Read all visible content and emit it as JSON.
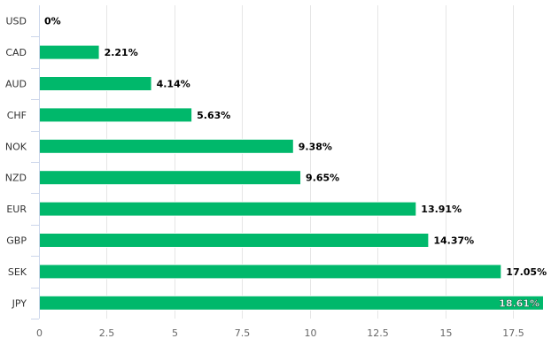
{
  "chart_data": {
    "type": "bar",
    "orientation": "horizontal",
    "categories": [
      "USD",
      "CAD",
      "AUD",
      "CHF",
      "NOK",
      "NZD",
      "EUR",
      "GBP",
      "SEK",
      "JPY"
    ],
    "values": [
      0,
      2.21,
      4.14,
      5.63,
      9.38,
      9.65,
      13.91,
      14.37,
      17.05,
      18.61
    ],
    "data_labels": [
      "0%",
      "2.21%",
      "4.14%",
      "5.63%",
      "9.38%",
      "9.65%",
      "13.91%",
      "14.37%",
      "17.05%",
      "18.61%"
    ],
    "x_ticks": [
      "0",
      "2.5",
      "5",
      "7.5",
      "10",
      "12.5",
      "15",
      "17.5"
    ],
    "xlim": [
      0,
      18.61
    ],
    "title": "",
    "xlabel": "",
    "ylabel": "",
    "grid": true,
    "legend": "none",
    "colors": {
      "bar": "#00b86b",
      "grid": "#e6e6e6",
      "axis": "#ccd6eb",
      "label_text": "#000000",
      "inside_label_text": "#ffffff",
      "category_text": "#333333",
      "tick_text": "#666666"
    }
  }
}
